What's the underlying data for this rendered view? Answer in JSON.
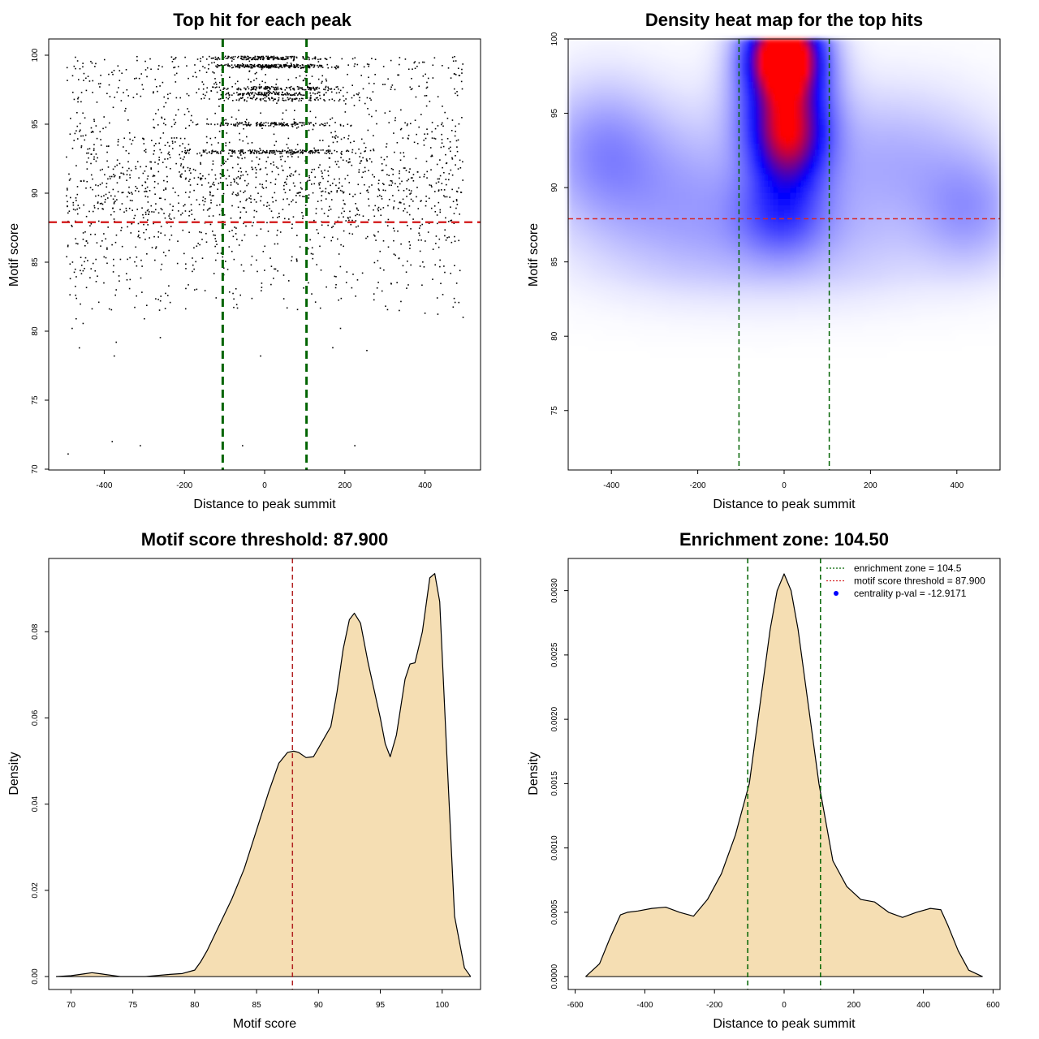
{
  "chart_data": [
    {
      "type": "scatter",
      "title": "Top hit for each peak",
      "xlabel": "Distance to peak summit",
      "ylabel": "Motif score",
      "xlim": [
        -500,
        500
      ],
      "ylim": [
        70,
        100
      ],
      "xticks": [
        -400,
        -200,
        0,
        200,
        400
      ],
      "yticks": [
        70,
        75,
        80,
        85,
        90,
        95,
        100
      ],
      "xtick_labels": [
        "-400",
        "-200",
        "0",
        "200",
        "400"
      ],
      "ytick_labels": [
        "70",
        "75",
        "80",
        "85",
        "90",
        "95",
        "100"
      ],
      "vlines": [
        -104.5,
        104.5
      ],
      "hline": 87.9,
      "line_colors": {
        "vertical": "#006400",
        "horizontal": "#d62728"
      },
      "point_color": "#000000",
      "sample_points": [
        [
          -490,
          71.1
        ],
        [
          -380,
          72.0
        ],
        [
          -310,
          71.7
        ],
        [
          -55,
          71.7
        ],
        [
          225,
          71.7
        ],
        [
          -375,
          78.2
        ],
        [
          -10,
          78.2
        ],
        [
          170,
          78.8
        ],
        [
          255,
          78.6
        ],
        [
          -370,
          79.2
        ],
        [
          -480,
          80.2
        ],
        [
          -470,
          80.9
        ],
        [
          -300,
          80.9
        ],
        [
          495,
          81.0
        ],
        [
          400,
          81.3
        ],
        [
          -265,
          82.3
        ]
      ],
      "dense_bands": [
        {
          "score": 99.2,
          "x_center": 20,
          "x_sd": 80,
          "n": 260
        },
        {
          "score": 99.8,
          "x_center": 10,
          "x_sd": 70,
          "n": 160
        },
        {
          "score": 97.6,
          "x_center": 20,
          "x_sd": 90,
          "n": 130
        },
        {
          "score": 97.2,
          "x_center": 15,
          "x_sd": 90,
          "n": 130
        },
        {
          "score": 96.8,
          "x_center": 10,
          "x_sd": 95,
          "n": 90
        },
        {
          "score": 95.0,
          "x_center": 10,
          "x_sd": 85,
          "n": 130
        },
        {
          "score": 93.0,
          "x_center": 15,
          "x_sd": 110,
          "n": 190
        }
      ]
    },
    {
      "type": "heatmap",
      "title": "Density heat map for the top hits",
      "xlabel": "Distance to peak summit",
      "ylabel": "Motif score",
      "xlim": [
        -500,
        500
      ],
      "ylim": [
        71,
        100
      ],
      "xticks": [
        -400,
        -200,
        0,
        200,
        400
      ],
      "yticks": [
        75,
        80,
        85,
        90,
        95,
        100
      ],
      "xtick_labels": [
        "-400",
        "-200",
        "0",
        "200",
        "400"
      ],
      "ytick_labels": [
        "75",
        "80",
        "85",
        "90",
        "95",
        "100"
      ],
      "vlines": [
        -104.5,
        104.5
      ],
      "hline": 87.9,
      "colormap": [
        "#ffffff",
        "#0000ff",
        "#ff0000"
      ],
      "hotspots": [
        {
          "x": 0,
          "y": 99,
          "weight": 1.0,
          "sx": 55,
          "sy": 1.8
        },
        {
          "x": 10,
          "y": 93.2,
          "weight": 0.55,
          "sx": 60,
          "sy": 2.3
        },
        {
          "x": 0,
          "y": 96,
          "weight": 0.35,
          "sx": 70,
          "sy": 2.5
        },
        {
          "x": -5,
          "y": 88.3,
          "weight": 0.22,
          "sx": 70,
          "sy": 2.0
        },
        {
          "x": -420,
          "y": 92.5,
          "weight": 0.14,
          "sx": 90,
          "sy": 3.0
        },
        {
          "x": 430,
          "y": 88.5,
          "weight": 0.12,
          "sx": 80,
          "sy": 2.5
        },
        {
          "x": 250,
          "y": 92.0,
          "weight": 0.1,
          "sx": 150,
          "sy": 3.0
        },
        {
          "x": -250,
          "y": 90.0,
          "weight": 0.1,
          "sx": 150,
          "sy": 3.5
        },
        {
          "x": 0,
          "y": 86.5,
          "weight": 0.08,
          "sx": 250,
          "sy": 3.0
        }
      ]
    },
    {
      "type": "area",
      "title": "Motif score threshold: 87.900",
      "xlabel": "Motif score",
      "ylabel": "Density",
      "xlim": [
        68.2,
        103.1
      ],
      "ylim": [
        -0.003,
        0.097
      ],
      "xticks": [
        70,
        75,
        80,
        85,
        90,
        95,
        100
      ],
      "yticks": [
        0,
        0.02,
        0.04,
        0.06,
        0.08
      ],
      "xtick_labels": [
        "70",
        "75",
        "80",
        "85",
        "90",
        "95",
        "100"
      ],
      "ytick_labels": [
        "0.00",
        "0.02",
        "0.04",
        "0.06",
        "0.08"
      ],
      "vline": 87.9,
      "fill_color": "#f5deb3",
      "line_colors": {
        "vertical": "#b22222"
      },
      "x": [
        68.8,
        70,
        71,
        71.7,
        72.5,
        74,
        76,
        78,
        79,
        80,
        80.5,
        81,
        82,
        83,
        84,
        85,
        86,
        86.8,
        87.5,
        88,
        88.4,
        89,
        89.6,
        90,
        91,
        91.5,
        92,
        92.5,
        92.9,
        93.4,
        94,
        94.5,
        95,
        95.4,
        95.8,
        96.3,
        97,
        97.4,
        97.8,
        98.4,
        99.0,
        99.4,
        99.8,
        100.4,
        101,
        101.8,
        102.3
      ],
      "y": [
        0.0,
        0.0002,
        0.0006,
        0.0009,
        0.0006,
        0.0,
        0.0,
        0.0005,
        0.0007,
        0.0015,
        0.0035,
        0.006,
        0.012,
        0.018,
        0.025,
        0.034,
        0.043,
        0.0495,
        0.052,
        0.0523,
        0.052,
        0.0508,
        0.051,
        0.053,
        0.058,
        0.066,
        0.076,
        0.0828,
        0.0843,
        0.082,
        0.073,
        0.0665,
        0.06,
        0.054,
        0.051,
        0.056,
        0.069,
        0.0725,
        0.0728,
        0.08,
        0.0925,
        0.0935,
        0.087,
        0.05,
        0.014,
        0.002,
        0.0
      ]
    },
    {
      "type": "area",
      "title": "Enrichment zone: 104.50",
      "xlabel": "Distance to peak summit",
      "ylabel": "Density",
      "xlim": [
        -620,
        620
      ],
      "ylim": [
        -0.0001,
        0.00325
      ],
      "xticks": [
        -600,
        -400,
        -200,
        0,
        200,
        400,
        600
      ],
      "yticks": [
        0,
        0.0005,
        0.001,
        0.0015,
        0.002,
        0.0025,
        0.003
      ],
      "xtick_labels": [
        "-600",
        "-400",
        "-200",
        "0",
        "200",
        "400",
        "600"
      ],
      "ytick_labels": [
        "0.0000",
        "0.0005",
        "0.0010",
        "0.0015",
        "0.0020",
        "0.0025",
        "0.0030"
      ],
      "vlines": [
        -104.5,
        104.5
      ],
      "fill_color": "#f5deb3",
      "line_colors": {
        "vertical": "#006400"
      },
      "legend": {
        "position": "top-right",
        "entries": [
          {
            "label": "enrichment zone = 104.5",
            "color": "#006400",
            "style": "dotted"
          },
          {
            "label": "motif score threshold = 87.900",
            "color": "#d62728",
            "style": "dotted"
          },
          {
            "label": "centrality p-val = -12.9171",
            "color": "#0000ff",
            "style": "point"
          }
        ]
      },
      "x": [
        -570,
        -530,
        -500,
        -470,
        -450,
        -420,
        -380,
        -340,
        -300,
        -260,
        -220,
        -180,
        -140,
        -100,
        -70,
        -40,
        -20,
        0,
        20,
        40,
        70,
        100,
        140,
        180,
        220,
        260,
        300,
        340,
        380,
        420,
        450,
        470,
        500,
        530,
        570
      ],
      "y": [
        0.0,
        0.0001,
        0.0003,
        0.00048,
        0.0005,
        0.00051,
        0.00053,
        0.00054,
        0.0005,
        0.00047,
        0.0006,
        0.0008,
        0.0011,
        0.0015,
        0.0021,
        0.0027,
        0.003,
        0.00313,
        0.003,
        0.0027,
        0.0021,
        0.0015,
        0.0009,
        0.0007,
        0.0006,
        0.00058,
        0.0005,
        0.00046,
        0.0005,
        0.00053,
        0.00052,
        0.0004,
        0.0002,
        5e-05,
        0.0
      ]
    }
  ]
}
